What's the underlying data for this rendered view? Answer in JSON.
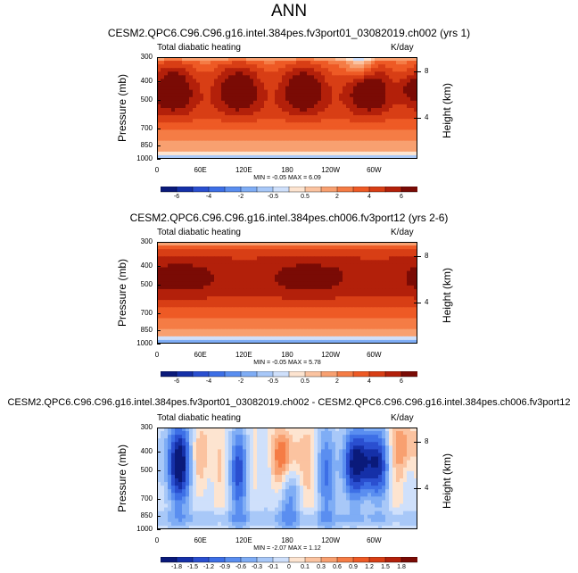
{
  "main_title": "ANN",
  "chart_data": [
    {
      "type": "heatmap",
      "title": "CESM2.QPC6.C96.C96.g16.intel.384pes.fv3port01_03082019.ch002 (yrs 1)",
      "left_title": "Total diabatic heating",
      "units": "K/day",
      "ylabel": "Pressure (mb)",
      "ylabel_right": "Height (km)",
      "yticks": [
        "300",
        "400",
        "500",
        "700",
        "850",
        "1000"
      ],
      "yticks_right": [
        "8",
        "4"
      ],
      "xticks": [
        "0",
        "60E",
        "120E",
        "180",
        "120W",
        "60W"
      ],
      "min_max": "MIN = -0.05  MAX = 6.09",
      "colorbar_labels": [
        "-6",
        "-4",
        "-2",
        "-0.5",
        "0.5",
        "2",
        "4",
        "6"
      ],
      "colors": [
        "#0a1a7a",
        "#1530a8",
        "#2a4fd0",
        "#3d6fe6",
        "#5a8ef0",
        "#7fadf5",
        "#a8c8f8",
        "#cfe0fb",
        "#fde4d0",
        "#fbc3a0",
        "#f8a070",
        "#f57c45",
        "#ee5a25",
        "#d83e15",
        "#b3200a",
        "#7a0b05"
      ],
      "field": "fv3",
      "vmin": -6,
      "vmax": 6
    },
    {
      "type": "heatmap",
      "title": "CESM2.QPC6.C96.C96.g16.intel.384pes.ch006.fv3port12 (yrs 2-6)",
      "left_title": "Total diabatic heating",
      "units": "K/day",
      "ylabel": "Pressure (mb)",
      "ylabel_right": "Height (km)",
      "yticks": [
        "300",
        "400",
        "500",
        "700",
        "850",
        "1000"
      ],
      "yticks_right": [
        "8",
        "4"
      ],
      "xticks": [
        "0",
        "60E",
        "120E",
        "180",
        "120W",
        "60W"
      ],
      "min_max": "MIN = -0.05  MAX = 5.78",
      "colorbar_labels": [
        "-6",
        "-4",
        "-2",
        "-0.5",
        "0.5",
        "2",
        "4",
        "6"
      ],
      "colors": [
        "#0a1a7a",
        "#1530a8",
        "#2a4fd0",
        "#3d6fe6",
        "#5a8ef0",
        "#7fadf5",
        "#a8c8f8",
        "#cfe0fb",
        "#fde4d0",
        "#fbc3a0",
        "#f8a070",
        "#f57c45",
        "#ee5a25",
        "#d83e15",
        "#b3200a",
        "#7a0b05"
      ],
      "field": "ch006",
      "vmin": -6,
      "vmax": 6
    },
    {
      "type": "heatmap",
      "title": "CESM2.QPC6.C96.C96.g16.intel.384pes.fv3port01_03082019.ch002 - CESM2.QPC6.C96.C96.g16.intel.384pes.ch006.fv3port12",
      "left_title": "Total diabatic heating",
      "units": "K/day",
      "ylabel": "Pressure (mb)",
      "ylabel_right": "Height (km)",
      "yticks": [
        "300",
        "400",
        "500",
        "700",
        "850",
        "1000"
      ],
      "yticks_right": [
        "8",
        "4"
      ],
      "xticks": [
        "0",
        "60E",
        "120E",
        "180",
        "120W",
        "60W"
      ],
      "min_max": "MIN = -2.07  MAX = 1.12",
      "colorbar_labels": [
        "-1.8",
        "-1.5",
        "-1.2",
        "-0.9",
        "-0.6",
        "-0.3",
        "-0.1",
        "0",
        "0.1",
        "0.3",
        "0.6",
        "0.9",
        "1.2",
        "1.5",
        "1.8"
      ],
      "colors": [
        "#0a1a7a",
        "#1530a8",
        "#2a4fd0",
        "#3d6fe6",
        "#5a8ef0",
        "#7fadf5",
        "#a8c8f8",
        "#cfe0fb",
        "#fde4d0",
        "#fbc3a0",
        "#f8a070",
        "#f57c45",
        "#ee5a25",
        "#d83e15",
        "#b3200a",
        "#7a0b05"
      ],
      "field": "diff",
      "vmin": -1.8,
      "vmax": 1.8
    }
  ]
}
